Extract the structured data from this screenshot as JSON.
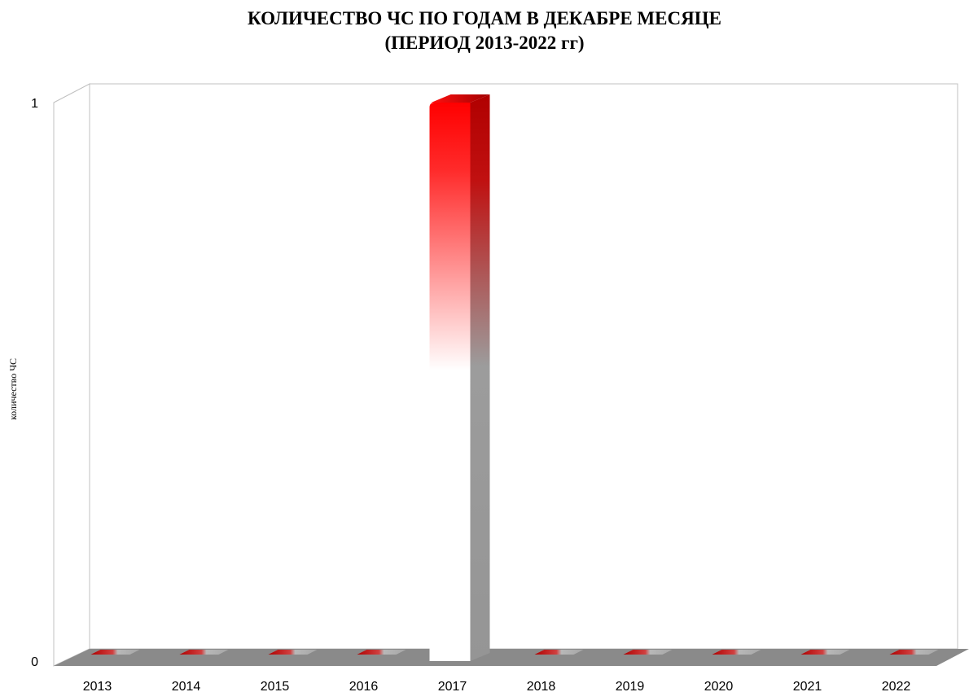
{
  "chart_data": {
    "type": "bar",
    "title": "КОЛИЧЕСТВО ЧС ПО ГОДАМ В ДЕКАБРЕ МЕСЯЦЕ",
    "subtitle": "(ПЕРИОД 2013-2022 гг)",
    "xlabel": "",
    "ylabel": "количество ЧС",
    "categories": [
      "2013",
      "2014",
      "2015",
      "2016",
      "2017",
      "2018",
      "2019",
      "2020",
      "2021",
      "2022"
    ],
    "values": [
      0,
      0,
      0,
      0,
      1,
      0,
      0,
      0,
      0,
      0
    ],
    "ylim": [
      0,
      1
    ],
    "yticks": [
      "0",
      "1"
    ],
    "grid": false,
    "legend": "none",
    "style": "3d",
    "colors": {
      "bar_top": "#ff0000",
      "bar_mid": "#ffffff",
      "bar_side": "#9a9a9a",
      "floor": "#8a8a8a",
      "wall_line": "#b8b8b8"
    }
  }
}
